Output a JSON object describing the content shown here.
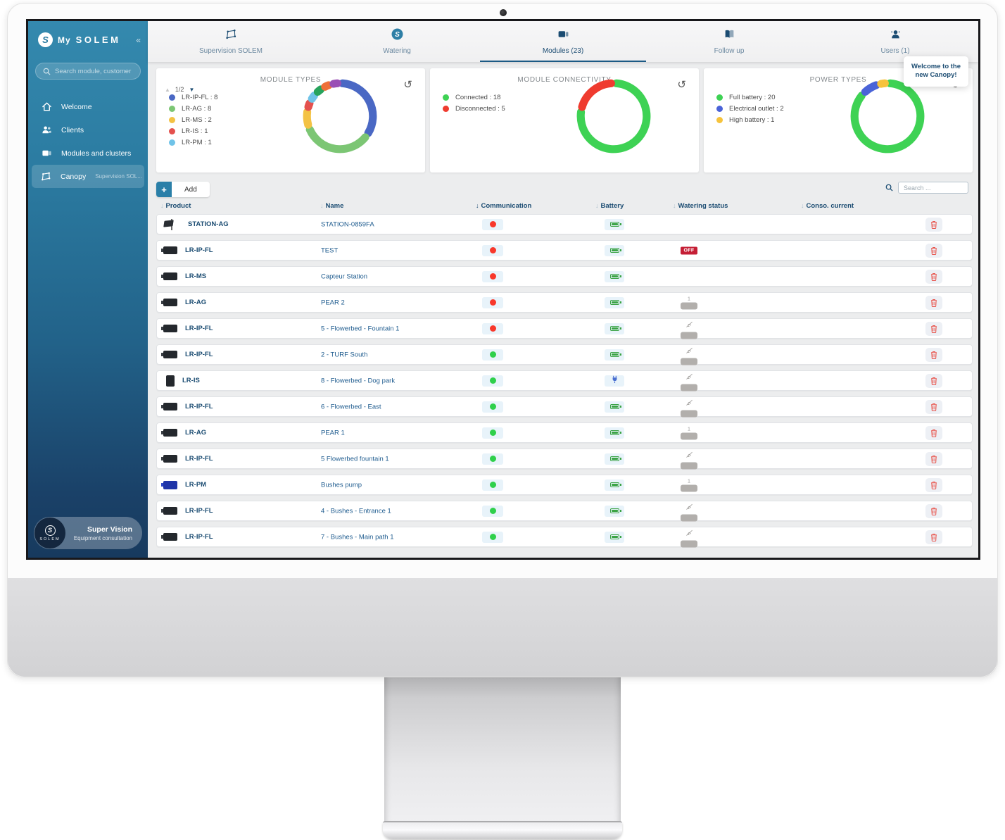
{
  "icons": {
    "collapse": "«",
    "refresh": "↺",
    "sort": "↓",
    "page_up": "▲",
    "page_down": "▼",
    "plus": "+",
    "solem_initial": "S"
  },
  "sidebar": {
    "logo": {
      "prefix": "My",
      "name": "SOLEM"
    },
    "search": {
      "placeholder": "Search module, customer ..."
    },
    "items": [
      {
        "label": "Welcome",
        "icon": "home",
        "active": false
      },
      {
        "label": "Clients",
        "icon": "clients",
        "active": false
      },
      {
        "label": "Modules and clusters",
        "icon": "modules",
        "active": false
      },
      {
        "label": "Canopy",
        "icon": "canopy",
        "active": true,
        "suffix": "Supervision SOL..."
      }
    ],
    "profile": {
      "title": "Super Vision",
      "subtitle": "Equipment consultation",
      "logo_text": "SOLEM"
    }
  },
  "tabs": [
    {
      "label": "Supervision SOLEM",
      "icon": "polygon",
      "active": false
    },
    {
      "label": "Watering",
      "icon": "solem",
      "active": false
    },
    {
      "label": "Modules (23)",
      "icon": "modules",
      "active": true
    },
    {
      "label": "Follow up",
      "icon": "book",
      "active": false
    },
    {
      "label": "Users (1)",
      "icon": "users",
      "active": false
    }
  ],
  "tooltip": {
    "text": "Welcome to the new Canopy!"
  },
  "chart_data": [
    {
      "type": "pie",
      "title": "MODULE TYPES",
      "total": 23,
      "series": [
        {
          "name": "LR-IP-FL",
          "value": 8,
          "color": "#4a68c4"
        },
        {
          "name": "LR-AG",
          "value": 8,
          "color": "#7cc674"
        },
        {
          "name": "LR-MS",
          "value": 2,
          "color": "#f3c244"
        },
        {
          "name": "LR-IS",
          "value": 1,
          "color": "#e4514e"
        },
        {
          "name": "LR-PM",
          "value": 1,
          "color": "#6fc3e8"
        },
        {
          "name": "",
          "value": 1,
          "color": "#27a35c"
        },
        {
          "name": "",
          "value": 1,
          "color": "#ef7039"
        },
        {
          "name": "",
          "value": 1,
          "color": "#9a4fb5"
        }
      ],
      "legend": [
        {
          "label": "LR-IP-FL : 8",
          "color": "#4a68c4"
        },
        {
          "label": "LR-AG : 8",
          "color": "#7cc674"
        },
        {
          "label": "LR-MS : 2",
          "color": "#f3c244"
        },
        {
          "label": "LR-IS : 1",
          "color": "#e4514e"
        },
        {
          "label": "LR-PM : 1",
          "color": "#6fc3e8"
        }
      ],
      "pagination": "1/2",
      "legend_position": "left"
    },
    {
      "type": "pie",
      "title": "MODULE CONNECTIVITY",
      "total": 23,
      "series": [
        {
          "name": "Connected",
          "value": 18,
          "color": "#3ed254"
        },
        {
          "name": "Disconnected",
          "value": 5,
          "color": "#ef3b2f"
        }
      ],
      "legend": [
        {
          "label": "Connected : 18",
          "color": "#3ed254"
        },
        {
          "label": "Disconnected : 5",
          "color": "#ef3b2f"
        }
      ],
      "legend_position": "left"
    },
    {
      "type": "pie",
      "title": "POWER TYPES",
      "total": 23,
      "series": [
        {
          "name": "Full battery",
          "value": 20,
          "color": "#3ed254"
        },
        {
          "name": "Electrical outlet",
          "value": 2,
          "color": "#4a63d8"
        },
        {
          "name": "High battery",
          "value": 1,
          "color": "#f6c33c"
        }
      ],
      "legend": [
        {
          "label": "Full battery : 20",
          "color": "#3ed254"
        },
        {
          "label": "Electrical outlet : 2",
          "color": "#4a63d8"
        },
        {
          "label": "High battery : 1",
          "color": "#f6c33c"
        }
      ],
      "legend_position": "left"
    }
  ],
  "toolbar": {
    "add_label": "Add",
    "search_placeholder": "Search ..."
  },
  "table": {
    "columns": [
      "Product",
      "Name",
      "Communication",
      "Battery",
      "Watering status",
      "Conso. current"
    ],
    "sorted_column": "Communication",
    "watering_off_label": "OFF",
    "watering_one_label": "1",
    "rows": [
      {
        "product": "STATION-AG",
        "name": "STATION-0859FA",
        "device": "station",
        "communication": "red",
        "battery": "battery",
        "watering": "none"
      },
      {
        "product": "LR-IP-FL",
        "name": "TEST",
        "device": "module",
        "communication": "red",
        "battery": "battery",
        "watering": "off"
      },
      {
        "product": "LR-MS",
        "name": "Capteur Station",
        "device": "module",
        "communication": "red",
        "battery": "battery",
        "watering": "none"
      },
      {
        "product": "LR-AG",
        "name": "PEAR 2",
        "device": "module",
        "communication": "red",
        "battery": "battery",
        "watering": "one"
      },
      {
        "product": "LR-IP-FL",
        "name": "5 - Flowerbed - Fountain 1",
        "device": "module",
        "communication": "red",
        "battery": "battery",
        "watering": "crossed"
      },
      {
        "product": "LR-IP-FL",
        "name": "2 - TURF South",
        "device": "module",
        "communication": "green",
        "battery": "battery",
        "watering": "crossed"
      },
      {
        "product": "LR-IS",
        "name": "8 - Flowerbed - Dog park",
        "device": "box",
        "communication": "green",
        "battery": "plug",
        "watering": "crossed"
      },
      {
        "product": "LR-IP-FL",
        "name": "6 - Flowerbed - East",
        "device": "module",
        "communication": "green",
        "battery": "battery",
        "watering": "crossed"
      },
      {
        "product": "LR-AG",
        "name": "PEAR 1",
        "device": "module",
        "communication": "green",
        "battery": "battery",
        "watering": "one"
      },
      {
        "product": "LR-IP-FL",
        "name": "5 Flowerbed fountain 1",
        "device": "module",
        "communication": "green",
        "battery": "battery",
        "watering": "crossed"
      },
      {
        "product": "LR-PM",
        "name": "Bushes pump",
        "device": "pump",
        "communication": "green",
        "battery": "battery",
        "watering": "one"
      },
      {
        "product": "LR-IP-FL",
        "name": "4 - Bushes - Entrance 1",
        "device": "module",
        "communication": "green",
        "battery": "battery",
        "watering": "crossed"
      },
      {
        "product": "LR-IP-FL",
        "name": "7 - Bushes - Main path 1",
        "device": "module",
        "communication": "green",
        "battery": "battery",
        "watering": "crossed"
      }
    ]
  }
}
